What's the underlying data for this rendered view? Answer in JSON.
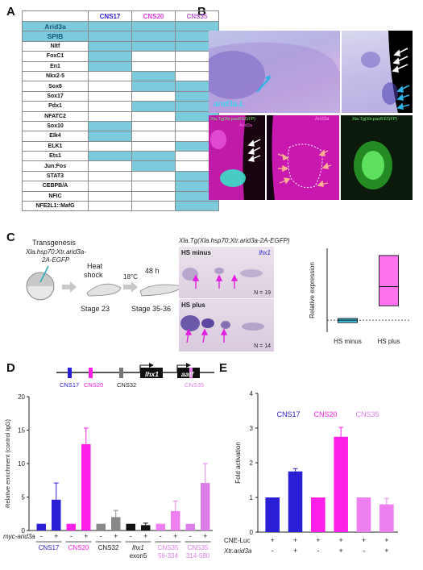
{
  "panels": {
    "a": "A",
    "b": "B",
    "c": "C",
    "d": "D",
    "e": "E"
  },
  "panel_a": {
    "columns": [
      "CNS17",
      "CNS20",
      "CNS35"
    ],
    "column_colors": [
      "#2b1fd6",
      "#e838e8",
      "#c060e0"
    ],
    "rows": [
      {
        "name": "Arid3a",
        "cells": [
          1,
          1,
          1
        ],
        "highlight": true
      },
      {
        "name": "SPIB",
        "cells": [
          1,
          1,
          1
        ],
        "highlight": true
      },
      {
        "name": "Nltf",
        "cells": [
          1,
          1,
          1
        ],
        "highlight": false
      },
      {
        "name": "FoxC1",
        "cells": [
          1,
          0,
          0
        ],
        "highlight": false
      },
      {
        "name": "En1",
        "cells": [
          1,
          0,
          0
        ],
        "highlight": false
      },
      {
        "name": "Nkx2-5",
        "cells": [
          0,
          1,
          0
        ],
        "highlight": false
      },
      {
        "name": "Sox6",
        "cells": [
          0,
          1,
          1
        ],
        "highlight": false
      },
      {
        "name": "Sox17",
        "cells": [
          0,
          0,
          1
        ],
        "highlight": false
      },
      {
        "name": "Pdx1",
        "cells": [
          0,
          1,
          1
        ],
        "highlight": false
      },
      {
        "name": "NFATC2",
        "cells": [
          0,
          0,
          1
        ],
        "highlight": false
      },
      {
        "name": "Sox10",
        "cells": [
          1,
          0,
          0
        ],
        "highlight": false
      },
      {
        "name": "Elk4",
        "cells": [
          1,
          0,
          0
        ],
        "highlight": false
      },
      {
        "name": "ELK1",
        "cells": [
          0,
          0,
          1
        ],
        "highlight": false
      },
      {
        "name": "Ets1",
        "cells": [
          1,
          1,
          0
        ],
        "highlight": false
      },
      {
        "name": "Jun:Fos",
        "cells": [
          0,
          1,
          0
        ],
        "highlight": false
      },
      {
        "name": "STAT3",
        "cells": [
          0,
          0,
          1
        ],
        "highlight": false
      },
      {
        "name": "CEBPB/A",
        "cells": [
          0,
          0,
          1
        ],
        "highlight": false
      },
      {
        "name": "NFIC",
        "cells": [
          0,
          0,
          1
        ],
        "highlight": false
      },
      {
        "name": "NFE2L1::MafG",
        "cells": [
          0,
          0,
          1
        ],
        "highlight": false
      }
    ]
  },
  "panel_b": {
    "gene_label": "arid3a.L",
    "label1": "Xla.Tg(Xtr.pax8:EGFP)",
    "label1b": "Arid3a",
    "label2": "Arid3a",
    "label3": "Xla.Tg(Xtr.pax8:EGFP)"
  },
  "panel_c": {
    "transgenesis": "Transgenesis",
    "construct": "Xla.hsp70:Xtr.arid3a-",
    "construct2": "2A-EGFP",
    "heat": "Heat",
    "shock": "shock",
    "stage23": "Stage 23",
    "temp": "18°C",
    "h48": "48 h",
    "stage35": "Stage 35-36",
    "tg_title": "Xla.Tg(Xla.hsp70:Xtr.arid3a-2A-EGFP)",
    "hs_minus": "HS minus",
    "lhx1": "lhx1",
    "n_minus": "N = 19",
    "hs_plus": "HS plus",
    "n_plus": "N = 14",
    "boxplot": {
      "ylabel": "Relative expression",
      "categories": [
        "HS minus",
        "HS plus"
      ],
      "boxes": [
        {
          "name": "HS minus",
          "low": -1,
          "median": 0,
          "high": 0.7,
          "color": "#39c6e6"
        },
        {
          "name": "HS plus",
          "low": 6,
          "median": 14,
          "high": 27,
          "color": "#ff73ee"
        }
      ],
      "ylim": [
        -5,
        30
      ]
    }
  },
  "chart_data": [
    {
      "type": "bar",
      "panel": "D",
      "ylabel": "Relative enrichment (control IgG)",
      "ylim": [
        0,
        20
      ],
      "yticks": [
        0,
        5,
        10,
        15,
        20
      ],
      "treatment_label": "myc-arid3a",
      "signs": [
        "-",
        "+",
        "-",
        "+",
        "-",
        "+",
        "-",
        "+",
        "-",
        "+",
        "-",
        "+"
      ],
      "group_labels": [
        "CNS17",
        "CNS20",
        "CNS32",
        "lhx1 exon5",
        "CNS35 56-334",
        "CNS35 314-580"
      ],
      "values": [
        1.0,
        4.6,
        1.0,
        12.9,
        1.0,
        2.0,
        1.0,
        0.8,
        1.0,
        2.9,
        1.0,
        7.1
      ],
      "errors": [
        0,
        2.5,
        0,
        2.4,
        0,
        1.0,
        0,
        0.3,
        0,
        1.5,
        0,
        2.9
      ],
      "colors": [
        "#2b1fd6",
        "#2b1fd6",
        "#ff1fe6",
        "#ff1fe6",
        "#888888",
        "#888888",
        "#111111",
        "#111111",
        "#ee7ff0",
        "#ee7ff0",
        "#dc7ee8",
        "#dc7ee8"
      ]
    },
    {
      "type": "bar",
      "panel": "E",
      "ylabel": "Fold activation",
      "ylim": [
        0,
        4
      ],
      "yticks": [
        0,
        1,
        2,
        3,
        4
      ],
      "row1_label": "CNE-Luc",
      "row2_label": "Xtr.arid3a",
      "row1": [
        "+",
        "+",
        "+",
        "+",
        "+",
        "+"
      ],
      "row2": [
        "-",
        "+",
        "-",
        "+",
        "-",
        "+"
      ],
      "values": [
        1.0,
        1.75,
        1.0,
        2.75,
        1.0,
        0.8
      ],
      "errors": [
        0,
        0.08,
        0,
        0.27,
        0,
        0.17
      ],
      "colors": [
        "#2b1fd6",
        "#2b1fd6",
        "#ff1fe6",
        "#ff1fe6",
        "#ee7ff0",
        "#ee7ff0"
      ],
      "legend": [
        "CNS17",
        "CNS20",
        "CNS35"
      ],
      "legend_colors": [
        "#2b1fd6",
        "#ff1fe6",
        "#dc7ee8"
      ]
    }
  ],
  "panel_d_gene": {
    "cns17": "CNS17",
    "cns20": "CNS20",
    "cns32": "CNS32",
    "lhx1": "lhx1",
    "aatf": "aatf",
    "cns35": "CNS35"
  }
}
